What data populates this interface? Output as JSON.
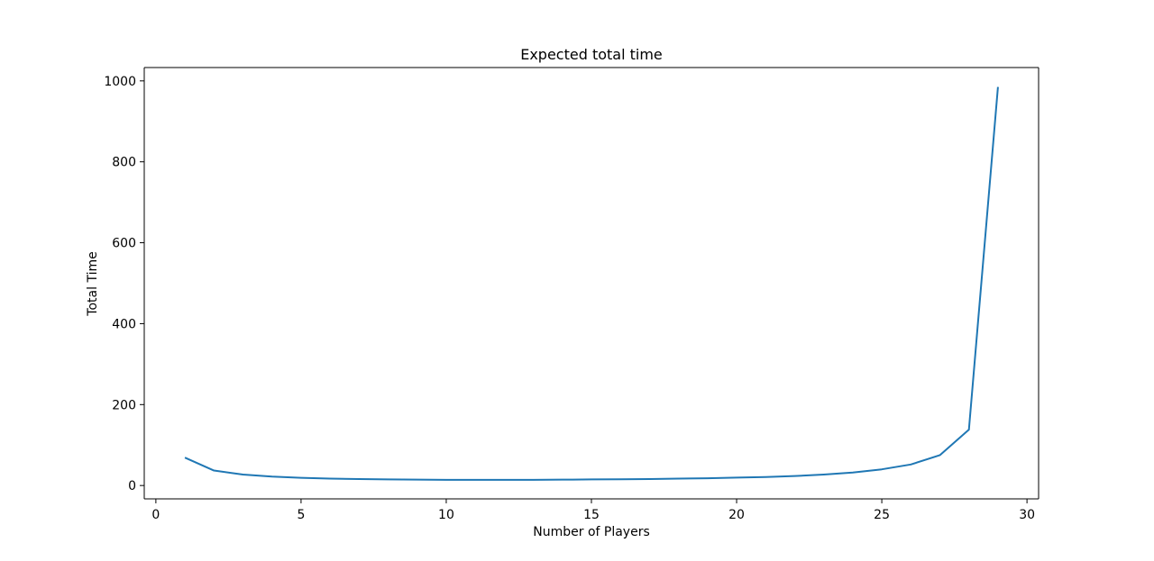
{
  "chart_data": {
    "type": "line",
    "title": "Expected total time",
    "xlabel": "Number of Players",
    "ylabel": "Total Time",
    "xlim": [
      -0.4,
      30.4
    ],
    "ylim": [
      -33,
      1033
    ],
    "xticks": [
      0,
      5,
      10,
      15,
      20,
      25,
      30
    ],
    "xtick_labels": [
      "0",
      "5",
      "10",
      "15",
      "20",
      "25",
      "30"
    ],
    "yticks": [
      0,
      200,
      400,
      600,
      800,
      1000
    ],
    "ytick_labels": [
      "0",
      "200",
      "400",
      "600",
      "800",
      "1000"
    ],
    "grid": false,
    "legend": "none",
    "series": [
      {
        "color": "#1f77b4",
        "x": [
          1,
          2,
          3,
          4,
          5,
          6,
          7,
          8,
          9,
          10,
          11,
          12,
          13,
          14,
          15,
          16,
          17,
          18,
          19,
          20,
          21,
          22,
          23,
          24,
          25,
          26,
          27,
          28,
          29
        ],
        "y": [
          69,
          37,
          27,
          22,
          19,
          17,
          16,
          15,
          14.5,
          14,
          14,
          14,
          14,
          14.5,
          15,
          15.5,
          16,
          17,
          18,
          19.5,
          21,
          23.5,
          27,
          32,
          40,
          52,
          75,
          138,
          985
        ]
      }
    ]
  }
}
